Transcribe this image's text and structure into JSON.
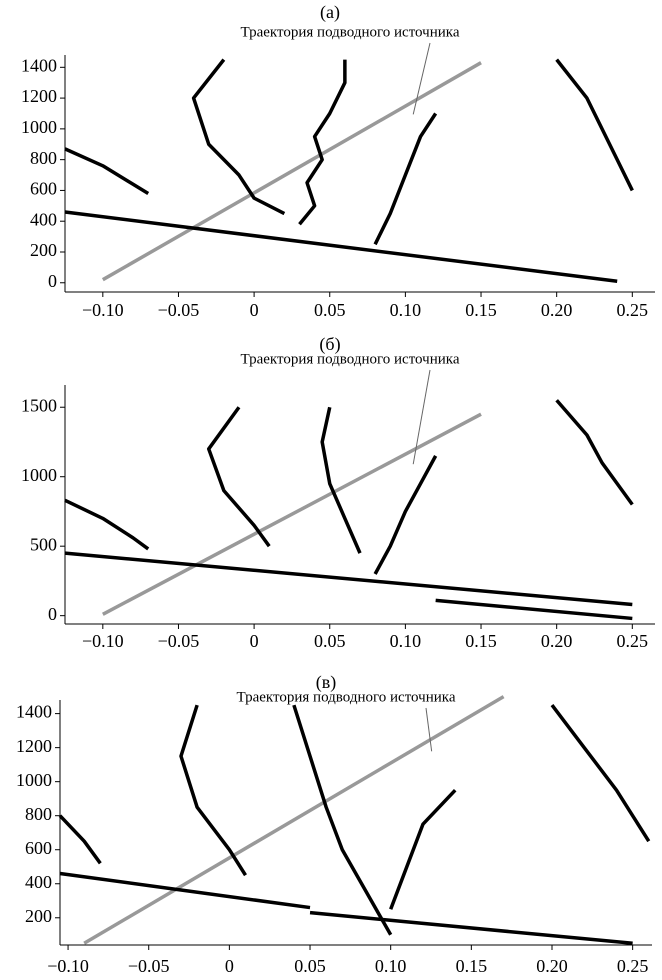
{
  "chart_data": [
    {
      "type": "line",
      "title": "(а)",
      "annotation": "Траектория подводного источника",
      "xlim": [
        -0.125,
        0.265
      ],
      "ylim": [
        -60,
        1480
      ],
      "xticks": [
        {
          "value": -0.1,
          "label": "−0.10"
        },
        {
          "value": -0.05,
          "label": "−0.05"
        },
        0,
        0.05,
        {
          "value": 0.1,
          "label": "0.10"
        },
        0.15,
        {
          "value": 0.2,
          "label": "0.20"
        },
        0.25
      ],
      "yticks": [
        0,
        200,
        400,
        600,
        800,
        1000,
        1200,
        1400
      ],
      "series": [
        {
          "color": "#999999",
          "x": [
            -0.1,
            0.15
          ],
          "values": [
            20,
            1430
          ]
        },
        {
          "color": "#000000",
          "x": [
            -0.125,
            0.24
          ],
          "values": [
            460,
            10
          ]
        },
        {
          "color": "#000000",
          "x": [
            -0.125,
            -0.1,
            -0.08,
            -0.07
          ],
          "values": [
            870,
            760,
            640,
            580
          ]
        },
        {
          "color": "#000000",
          "x": [
            -0.02,
            -0.04,
            -0.03,
            -0.01,
            0.0,
            0.02
          ],
          "values": [
            1450,
            1200,
            900,
            700,
            550,
            450
          ]
        },
        {
          "color": "#000000",
          "x": [
            0.03,
            0.04,
            0.035,
            0.045,
            0.04,
            0.05,
            0.06,
            0.06
          ],
          "values": [
            380,
            500,
            650,
            800,
            950,
            1100,
            1300,
            1450
          ]
        },
        {
          "color": "#000000",
          "x": [
            0.08,
            0.09,
            0.1,
            0.11,
            0.12
          ],
          "values": [
            250,
            450,
            700,
            950,
            1100
          ]
        },
        {
          "color": "#000000",
          "x": [
            0.2,
            0.22,
            0.23,
            0.24,
            0.25
          ],
          "values": [
            1450,
            1200,
            1000,
            800,
            600
          ]
        }
      ]
    },
    {
      "type": "line",
      "title": "(б)",
      "annotation": "Траектория подводного источника",
      "xlim": [
        -0.125,
        0.265
      ],
      "ylim": [
        -60,
        1660
      ],
      "xticks": [
        {
          "value": -0.1,
          "label": "−0.10"
        },
        {
          "value": -0.05,
          "label": "−0.05"
        },
        0,
        0.05,
        {
          "value": 0.1,
          "label": "0.10"
        },
        0.15,
        {
          "value": 0.2,
          "label": "0.20"
        },
        0.25
      ],
      "yticks": [
        0,
        500,
        1000,
        1500
      ],
      "series": [
        {
          "color": "#999999",
          "x": [
            -0.1,
            0.15
          ],
          "values": [
            10,
            1450
          ]
        },
        {
          "color": "#000000",
          "x": [
            -0.125,
            0.25
          ],
          "values": [
            450,
            80
          ]
        },
        {
          "color": "#000000",
          "x": [
            0.12,
            0.25
          ],
          "values": [
            110,
            -20
          ]
        },
        {
          "color": "#000000",
          "x": [
            -0.125,
            -0.1,
            -0.08,
            -0.07
          ],
          "values": [
            830,
            700,
            560,
            480
          ]
        },
        {
          "color": "#000000",
          "x": [
            -0.01,
            -0.03,
            -0.02,
            0.0,
            0.01
          ],
          "values": [
            1500,
            1200,
            900,
            650,
            500
          ]
        },
        {
          "color": "#000000",
          "x": [
            0.05,
            0.045,
            0.05,
            0.06,
            0.07
          ],
          "values": [
            1500,
            1250,
            950,
            700,
            450
          ]
        },
        {
          "color": "#000000",
          "x": [
            0.08,
            0.09,
            0.1,
            0.11,
            0.12
          ],
          "values": [
            300,
            500,
            750,
            950,
            1150
          ]
        },
        {
          "color": "#000000",
          "x": [
            0.2,
            0.22,
            0.23,
            0.24,
            0.25
          ],
          "values": [
            1550,
            1300,
            1100,
            950,
            800
          ]
        }
      ]
    },
    {
      "type": "line",
      "title": "(в)",
      "annotation": "Траектория подводного источника",
      "xlim": [
        -0.105,
        0.262
      ],
      "ylim": [
        40,
        1480
      ],
      "xticks": [
        {
          "value": -0.1,
          "label": "−0.10"
        },
        {
          "value": -0.05,
          "label": "−0.05"
        },
        0,
        0.05,
        {
          "value": 0.1,
          "label": "0.10"
        },
        0.15,
        {
          "value": 0.2,
          "label": "0.20"
        },
        0.25
      ],
      "yticks": [
        200,
        400,
        600,
        800,
        1000,
        1200,
        1400
      ],
      "series": [
        {
          "color": "#999999",
          "x": [
            -0.09,
            0.17
          ],
          "values": [
            50,
            1500
          ]
        },
        {
          "color": "#000000",
          "x": [
            -0.105,
            0.05
          ],
          "values": [
            460,
            260
          ]
        },
        {
          "color": "#000000",
          "x": [
            0.05,
            0.25
          ],
          "values": [
            230,
            50
          ]
        },
        {
          "color": "#000000",
          "x": [
            -0.105,
            -0.09,
            -0.08
          ],
          "values": [
            800,
            650,
            520
          ]
        },
        {
          "color": "#000000",
          "x": [
            -0.02,
            -0.03,
            -0.02,
            0.0,
            0.01
          ],
          "values": [
            1450,
            1150,
            850,
            600,
            450
          ]
        },
        {
          "color": "#000000",
          "x": [
            0.04,
            0.05,
            0.06,
            0.07,
            0.1
          ],
          "values": [
            1450,
            1150,
            850,
            600,
            100
          ]
        },
        {
          "color": "#000000",
          "x": [
            0.1,
            0.11,
            0.12,
            0.14
          ],
          "values": [
            250,
            500,
            750,
            950
          ]
        },
        {
          "color": "#000000",
          "x": [
            0.2,
            0.22,
            0.24,
            0.26
          ],
          "values": [
            1450,
            1200,
            950,
            650
          ]
        }
      ]
    }
  ]
}
